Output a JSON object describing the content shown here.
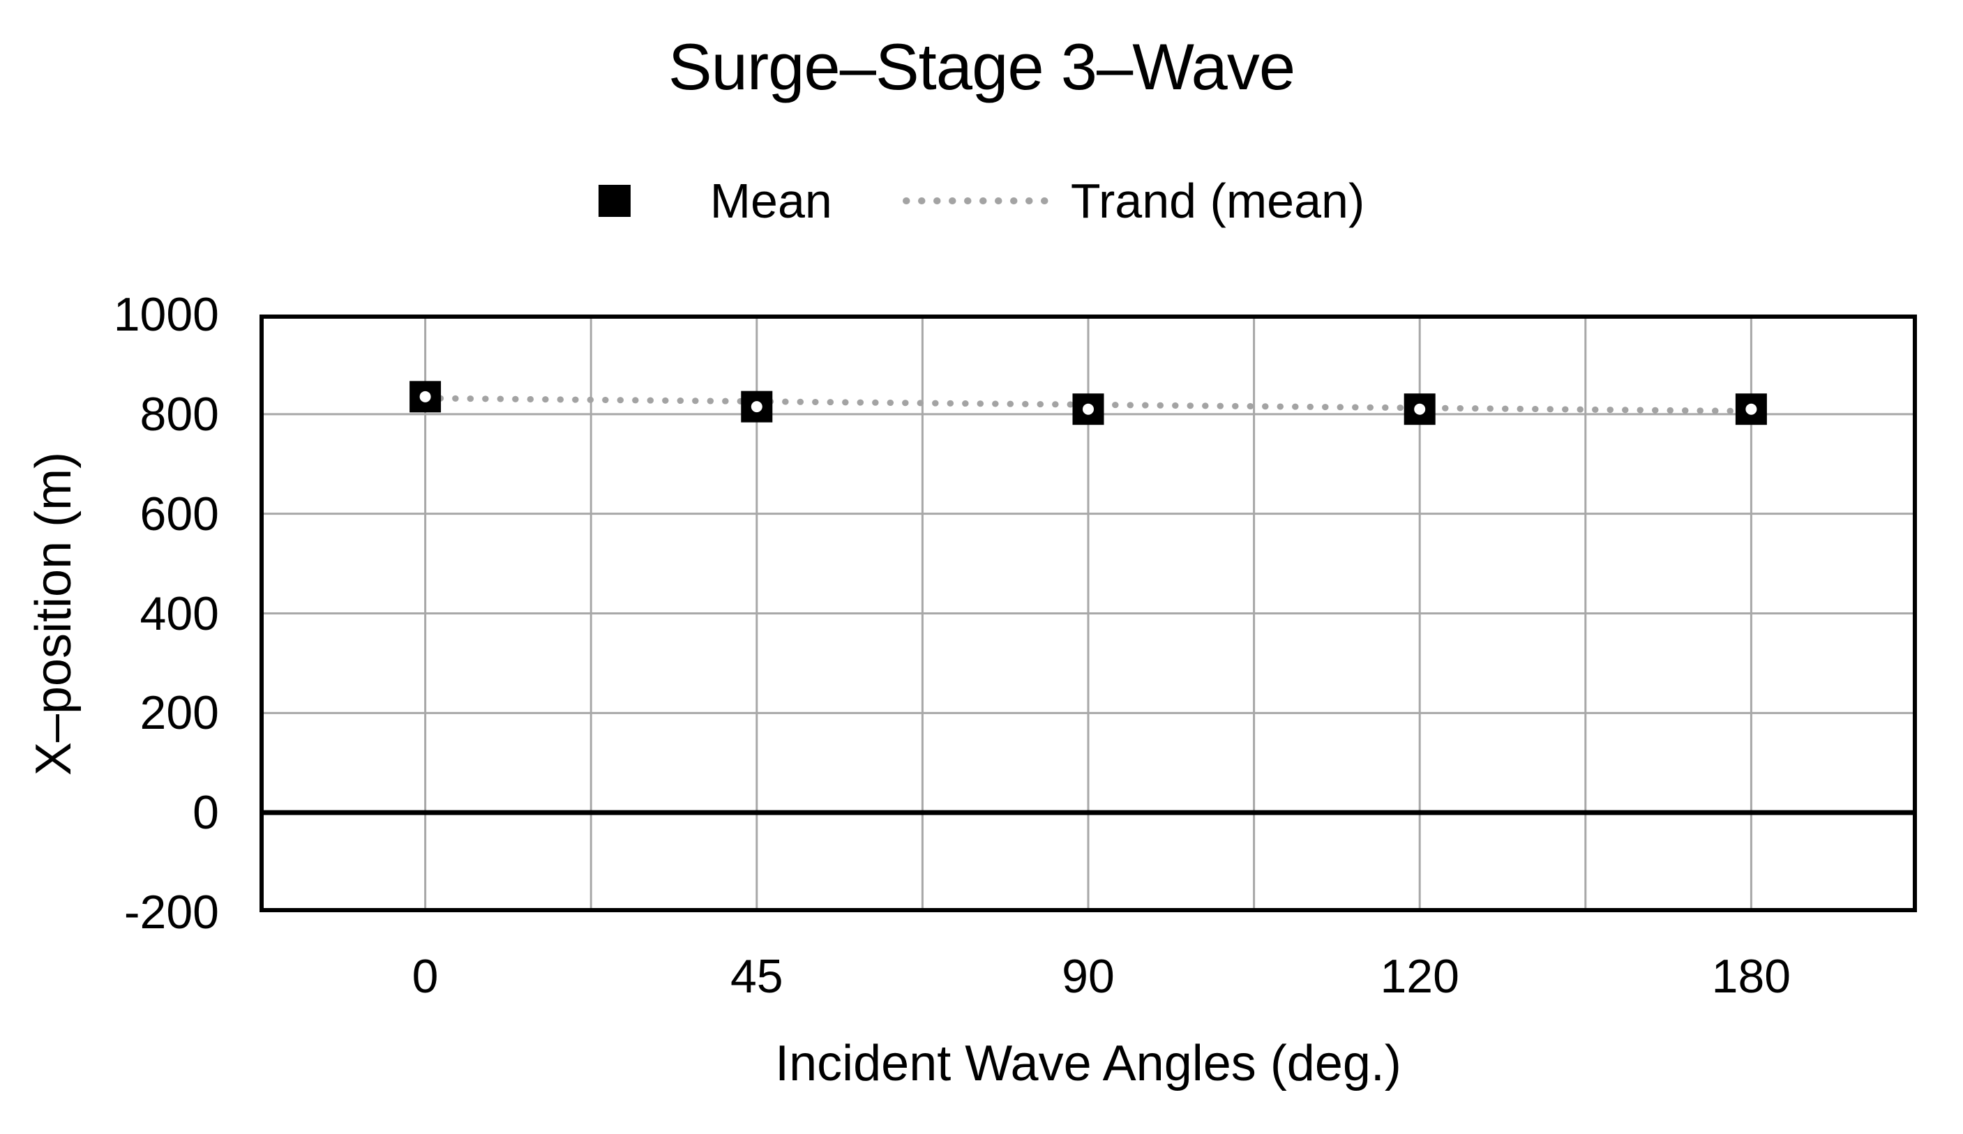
{
  "chart_data": {
    "type": "scatter",
    "title": "Surge–Stage 3–Wave",
    "xlabel": "Incident Wave Angles (deg.)",
    "ylabel": "X–position (m)",
    "categories": [
      "0",
      "45",
      "90",
      "120",
      "180"
    ],
    "series": [
      {
        "name": "Mean",
        "marker": "filled-square",
        "values": [
          835,
          815,
          810,
          810,
          810
        ]
      }
    ],
    "trendline": {
      "name": "Trand (mean)",
      "style": "dotted",
      "start": 832,
      "end": 806
    },
    "yticks": [
      1000,
      800,
      600,
      400,
      200,
      0,
      -200
    ],
    "ylim": [
      -200,
      1000
    ],
    "grid": true,
    "legend_position": "top-center",
    "colors": {
      "marker": "#000000",
      "marker_center_dot": "#ffffff",
      "trend": "#a3a3a3",
      "grid": "#a8a8a8",
      "axis": "#000000",
      "text": "#000000",
      "background": "#ffffff"
    }
  },
  "legend": {
    "items": [
      {
        "label": "Mean"
      },
      {
        "label": "Trand (mean)"
      }
    ]
  }
}
